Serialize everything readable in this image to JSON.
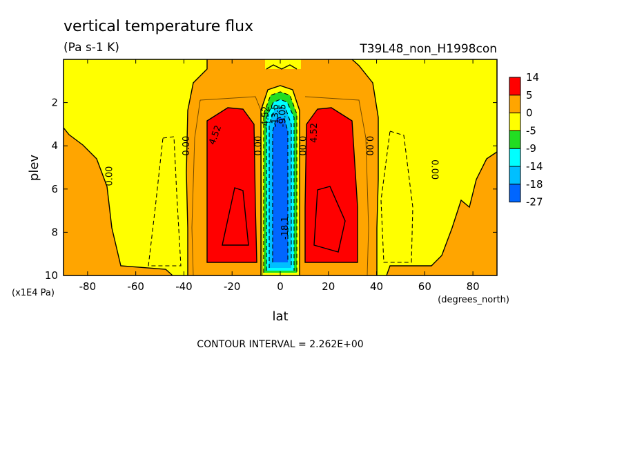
{
  "chart_data": {
    "type": "heatmap",
    "subtype": "filled-contour",
    "title": "vertical temperature flux",
    "units": "(Pa s-1 K)",
    "run_label": "T39L48_non_H1998con",
    "xlabel": "lat",
    "ylabel": "plev",
    "x_units": "(degrees_north)",
    "y_units": "(x1E4 Pa)",
    "xlim": [
      -90,
      90
    ],
    "ylim": [
      10,
      0
    ],
    "x_ticks": [
      "-80",
      "-60",
      "-40",
      "-20",
      "0",
      "20",
      "40",
      "60",
      "80"
    ],
    "x_tick_values": [
      -80,
      -60,
      -40,
      -20,
      0,
      20,
      40,
      60,
      80
    ],
    "y_ticks": [
      "2",
      "4",
      "6",
      "8",
      "10"
    ],
    "y_tick_values": [
      2,
      4,
      6,
      8,
      10
    ],
    "contour_interval_text": "CONTOUR INTERVAL = 2.262E+00",
    "legend": {
      "placement": "right",
      "bins": [
        {
          "label": "14",
          "color": "#ff0000"
        },
        {
          "label": "5",
          "color": "#ffa500"
        },
        {
          "label": "0",
          "color": "#ffff00"
        },
        {
          "label": "-5",
          "color": "#22dd22"
        },
        {
          "label": "-9",
          "color": "#00ffff"
        },
        {
          "label": "-14",
          "color": "#00bfff"
        },
        {
          "label": "-18",
          "color": "#0066ff"
        },
        {
          "label": "-27",
          "color": null
        }
      ]
    },
    "contour_labels": [
      {
        "text": "0.00",
        "lat": -71,
        "plev": 5.4,
        "rotate": -90
      },
      {
        "text": "0.00",
        "lat": -39,
        "plev": 4.0,
        "rotate": -90
      },
      {
        "text": "4.52",
        "lat": -27,
        "plev": 3.5,
        "rotate": -70
      },
      {
        "text": "0.00",
        "lat": -9,
        "plev": 4.0,
        "rotate": -90
      },
      {
        "text": "-4.52",
        "lat": -6,
        "plev": 2.7,
        "rotate": -90
      },
      {
        "text": "-13.5",
        "lat": -2,
        "plev": 2.6,
        "rotate": -90
      },
      {
        "text": "-9.05",
        "lat": 1,
        "plev": 2.6,
        "rotate": -90
      },
      {
        "text": "-18.1",
        "lat": 2,
        "plev": 7.8,
        "rotate": -90
      },
      {
        "text": "0.00",
        "lat": 9,
        "plev": 4.0,
        "rotate": 90
      },
      {
        "text": "4.52",
        "lat": 14,
        "plev": 3.4,
        "rotate": -90
      },
      {
        "text": "0.00",
        "lat": 37,
        "plev": 4.0,
        "rotate": 90
      },
      {
        "text": "0.00",
        "lat": 64,
        "plev": 5.1,
        "rotate": 90
      }
    ]
  }
}
